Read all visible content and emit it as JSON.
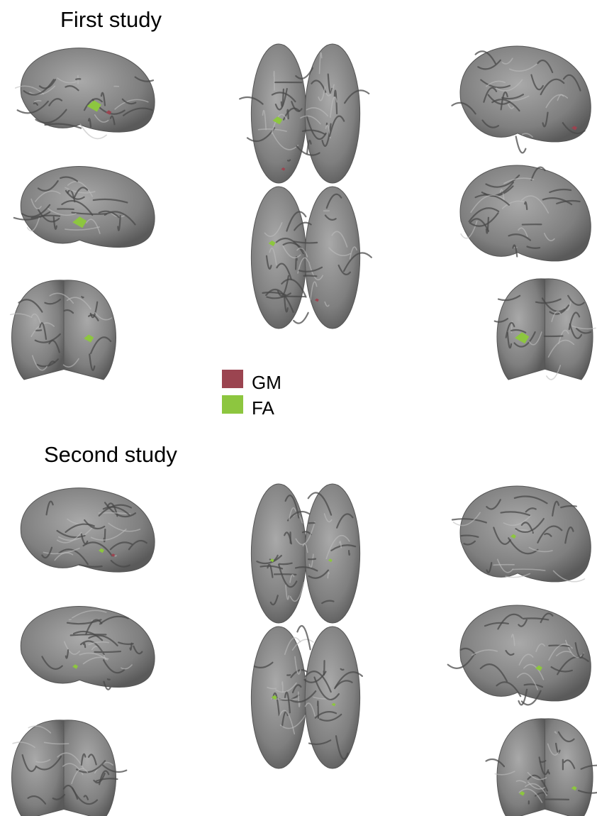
{
  "panels": [
    {
      "title": "First study"
    },
    {
      "title": "Second study"
    }
  ],
  "legend": [
    {
      "label": "GM",
      "color": "#9b4450"
    },
    {
      "label": "FA",
      "color": "#8dc63f"
    }
  ]
}
